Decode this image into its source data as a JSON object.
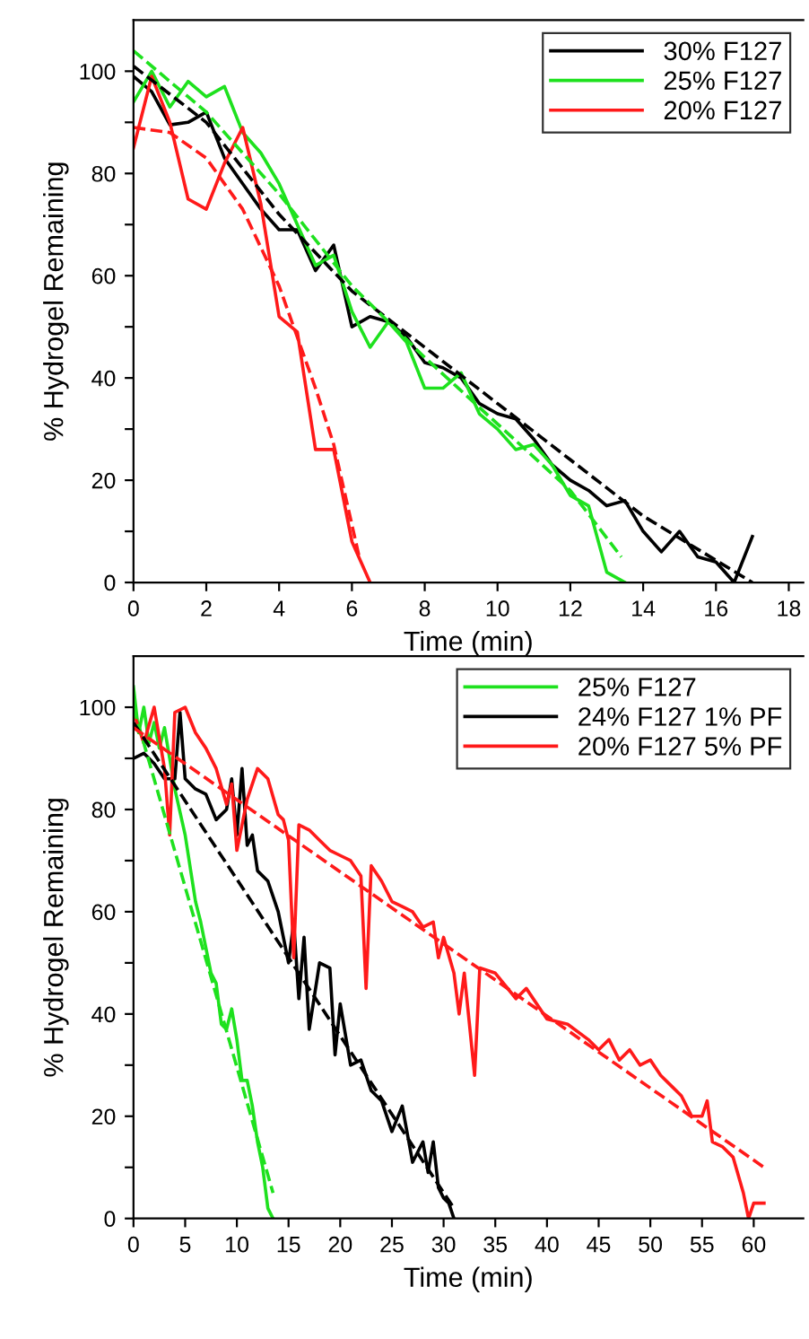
{
  "chart_data": [
    {
      "type": "line",
      "xlabel": "Time (min)",
      "ylabel": "% Hydrogel Remaining",
      "xlim": [
        0,
        18.4
      ],
      "ylim": [
        0,
        110
      ],
      "xticks": [
        0,
        2,
        4,
        6,
        8,
        10,
        12,
        14,
        16,
        18
      ],
      "yticks": [
        0,
        {
          "value": 10,
          "label": null
        },
        20,
        {
          "value": 30,
          "label": null
        },
        40,
        {
          "value": 50,
          "label": null
        },
        60,
        {
          "value": 70,
          "label": null
        },
        80,
        {
          "value": 90,
          "label": null
        },
        100
      ],
      "grid": false,
      "legend": "top right",
      "line_style": "solid",
      "marker": "none",
      "series": [
        {
          "name": "30% F127",
          "color": "#000000",
          "x": [
            0,
            0.5,
            1,
            1.5,
            2,
            2.5,
            3,
            3.5,
            4,
            4.5,
            5,
            5.5,
            6,
            6.5,
            7,
            7.5,
            8,
            8.5,
            9,
            9.5,
            10,
            10.5,
            11,
            11.5,
            12,
            12.5,
            13,
            13.5,
            14,
            14.5,
            15,
            15.5,
            16,
            16.5,
            17
          ],
          "values": [
            99,
            96,
            89.5,
            90,
            92,
            83,
            78,
            73,
            69,
            69,
            61,
            66,
            50,
            52,
            51,
            48,
            43,
            42,
            40,
            35,
            33,
            32,
            28,
            23,
            20,
            18,
            15,
            16,
            10,
            6,
            10,
            5,
            4,
            0,
            9
          ]
        },
        {
          "name": "25% F127",
          "color": "#1ee11e",
          "x": [
            0,
            0.5,
            1,
            1.5,
            2,
            2.5,
            3,
            3.5,
            4,
            4.5,
            5,
            5.5,
            6,
            6.5,
            7,
            7.5,
            8,
            8.5,
            9,
            9.5,
            10,
            10.5,
            11,
            11.5,
            12,
            12.5,
            13,
            13.5
          ],
          "values": [
            94,
            100,
            93,
            98,
            95,
            97,
            88,
            84,
            78,
            70,
            62,
            64,
            53,
            46,
            51,
            47,
            38,
            38,
            41,
            33,
            30,
            26,
            27,
            23,
            17,
            15,
            2,
            0
          ]
        },
        {
          "name": "20% F127",
          "color": "#ff1a1a",
          "x": [
            0,
            0.5,
            1,
            1.5,
            2,
            2.5,
            3,
            3.5,
            4,
            4.5,
            5,
            5.5,
            6,
            6.5
          ],
          "values": [
            85,
            99,
            90,
            75,
            73,
            82,
            89,
            74,
            52,
            49,
            26,
            26,
            8,
            0
          ]
        },
        {
          "color": "#000000",
          "line_style": "dashed",
          "x": [
            0,
            2,
            4,
            6,
            8,
            10,
            12,
            14,
            17
          ],
          "values": [
            101,
            90,
            72,
            57,
            46,
            35,
            24,
            13,
            0
          ]
        },
        {
          "color": "#1ee11e",
          "line_style": "dashed",
          "x": [
            0,
            2,
            4,
            6,
            8,
            10,
            12,
            13.4
          ],
          "values": [
            104,
            92,
            76,
            58,
            44,
            31,
            18,
            5
          ]
        },
        {
          "color": "#ff1a1a",
          "line_style": "dashed",
          "x": [
            0,
            1,
            2,
            3,
            4,
            5,
            5.5,
            6.2
          ],
          "values": [
            89,
            88,
            83,
            73,
            58,
            38,
            27,
            5
          ]
        }
      ]
    },
    {
      "type": "line",
      "xlabel": "Time (min)",
      "ylabel": "% Hydrogel Remaining",
      "xlim": [
        0,
        64.8
      ],
      "ylim": [
        0,
        110
      ],
      "xticks": [
        0,
        5,
        10,
        15,
        20,
        25,
        30,
        35,
        40,
        45,
        50,
        55,
        60
      ],
      "yticks": [
        0,
        {
          "value": 10,
          "label": null
        },
        20,
        {
          "value": 30,
          "label": null
        },
        40,
        {
          "value": 50,
          "label": null
        },
        60,
        {
          "value": 70,
          "label": null
        },
        80,
        {
          "value": 90,
          "label": null
        },
        100
      ],
      "grid": false,
      "legend": "top right",
      "line_style": "solid",
      "marker": "none",
      "series": [
        {
          "name": "25% F127",
          "color": "#1ee11e",
          "x": [
            0,
            0.5,
            1,
            1.5,
            2,
            2.5,
            3,
            3.5,
            4,
            5,
            6,
            6.5,
            7,
            7.5,
            8,
            8.5,
            9,
            9.5,
            10,
            10.5,
            11,
            11.5,
            12,
            12.5,
            13,
            13.5
          ],
          "values": [
            104,
            95,
            100,
            93,
            97,
            92,
            96,
            90,
            84,
            75,
            62,
            58,
            53,
            48,
            46,
            38,
            37,
            41,
            35,
            27,
            27,
            22,
            15,
            10,
            2,
            0
          ]
        },
        {
          "name": "24% F127 1% PF",
          "color": "#000000",
          "x": [
            0,
            1,
            2,
            3,
            4,
            4.5,
            5,
            6,
            7,
            8,
            9,
            9.5,
            10,
            10.5,
            11,
            11.5,
            12,
            13,
            14,
            14.5,
            15,
            15.5,
            16,
            16.5,
            17,
            18,
            19,
            19.5,
            20,
            21,
            22,
            23,
            24,
            25,
            26,
            27,
            28,
            28.5,
            29,
            29.5,
            30,
            30.5,
            31
          ],
          "values": [
            90,
            91,
            89,
            86,
            86,
            99,
            86,
            84,
            83,
            78,
            80,
            86,
            75,
            88,
            73,
            75,
            68,
            66,
            60,
            55,
            50,
            58,
            43,
            55,
            37,
            50,
            49,
            32,
            42,
            30,
            31,
            25,
            23,
            17,
            22,
            11,
            15,
            9,
            15,
            6,
            4,
            3,
            0
          ]
        },
        {
          "name": "20% F127 5% PF",
          "color": "#ff1a1a",
          "x": [
            0,
            1,
            2,
            3,
            3.5,
            4,
            5,
            6,
            7,
            8,
            9,
            9.5,
            10,
            11,
            12,
            13,
            14,
            14.5,
            15,
            15.5,
            16,
            17,
            18,
            19,
            20,
            21,
            22,
            22.5,
            23,
            24,
            25,
            26,
            27,
            28,
            29,
            29.5,
            30,
            31,
            31.5,
            32,
            33,
            33.5,
            35,
            37,
            38,
            40,
            42,
            44,
            45,
            46,
            47,
            48,
            49,
            50,
            51,
            52,
            53,
            54,
            55,
            55.5,
            56,
            57,
            58,
            59,
            59.5,
            60,
            61
          ],
          "values": [
            99,
            93,
            100,
            88,
            75,
            99,
            100,
            95,
            92,
            88,
            81,
            85,
            72,
            82,
            88,
            86,
            79,
            78,
            74,
            51,
            77,
            76,
            74,
            72,
            71,
            70,
            67,
            45,
            69,
            66,
            62,
            61,
            60,
            57,
            58,
            51,
            55,
            48,
            40,
            48,
            28,
            49,
            48,
            43,
            45,
            39,
            38,
            35,
            33,
            35,
            31,
            33,
            30,
            31,
            28,
            26,
            24,
            20,
            20,
            23,
            15,
            14,
            12,
            5,
            0,
            3,
            3
          ]
        },
        {
          "color": "#1ee11e",
          "line_style": "dashed",
          "x": [
            0,
            13.5
          ],
          "values": [
            100,
            5
          ]
        },
        {
          "color": "#000000",
          "line_style": "dashed",
          "x": [
            0,
            31
          ],
          "values": [
            97,
            2
          ]
        },
        {
          "color": "#ff1a1a",
          "line_style": "dashed",
          "x": [
            0,
            61
          ],
          "values": [
            96,
            10
          ]
        }
      ]
    }
  ]
}
